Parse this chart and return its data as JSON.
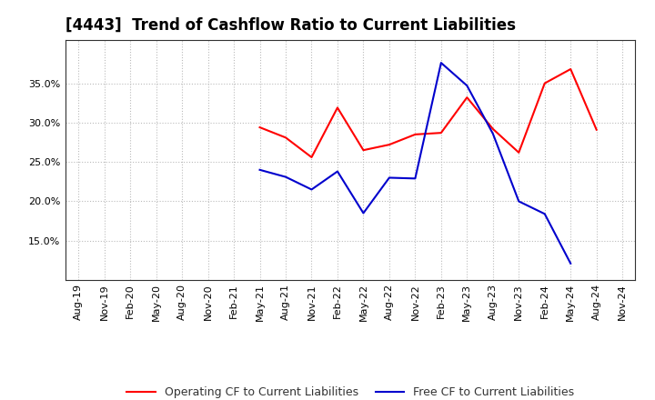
{
  "title": "[4443]  Trend of Cashflow Ratio to Current Liabilities",
  "x_labels": [
    "Aug-19",
    "Nov-19",
    "Feb-20",
    "May-20",
    "Aug-20",
    "Nov-20",
    "Feb-21",
    "May-21",
    "Aug-21",
    "Nov-21",
    "Feb-22",
    "May-22",
    "Aug-22",
    "Nov-22",
    "Feb-23",
    "May-23",
    "Aug-23",
    "Nov-23",
    "Feb-24",
    "May-24",
    "Aug-24",
    "Nov-24"
  ],
  "operating_cf": [
    null,
    null,
    null,
    null,
    null,
    null,
    null,
    0.294,
    0.281,
    0.256,
    0.319,
    0.265,
    0.272,
    0.285,
    0.287,
    0.332,
    0.292,
    0.262,
    0.35,
    0.368,
    0.291,
    null
  ],
  "free_cf": [
    null,
    null,
    null,
    null,
    null,
    null,
    null,
    0.24,
    0.231,
    0.215,
    0.238,
    0.185,
    0.23,
    0.229,
    0.376,
    0.347,
    0.286,
    0.2,
    0.184,
    0.121,
    null,
    null
  ],
  "operating_color": "#ff0000",
  "free_color": "#0000cd",
  "ylim_min": 0.1,
  "ylim_max": 0.405,
  "yticks": [
    0.15,
    0.2,
    0.25,
    0.3,
    0.35
  ],
  "bg_color": "#ffffff",
  "plot_bg_color": "#ffffff",
  "grid_color": "#bbbbbb",
  "legend_op": "Operating CF to Current Liabilities",
  "legend_free": "Free CF to Current Liabilities",
  "title_fontsize": 12,
  "tick_fontsize": 8,
  "legend_fontsize": 9
}
